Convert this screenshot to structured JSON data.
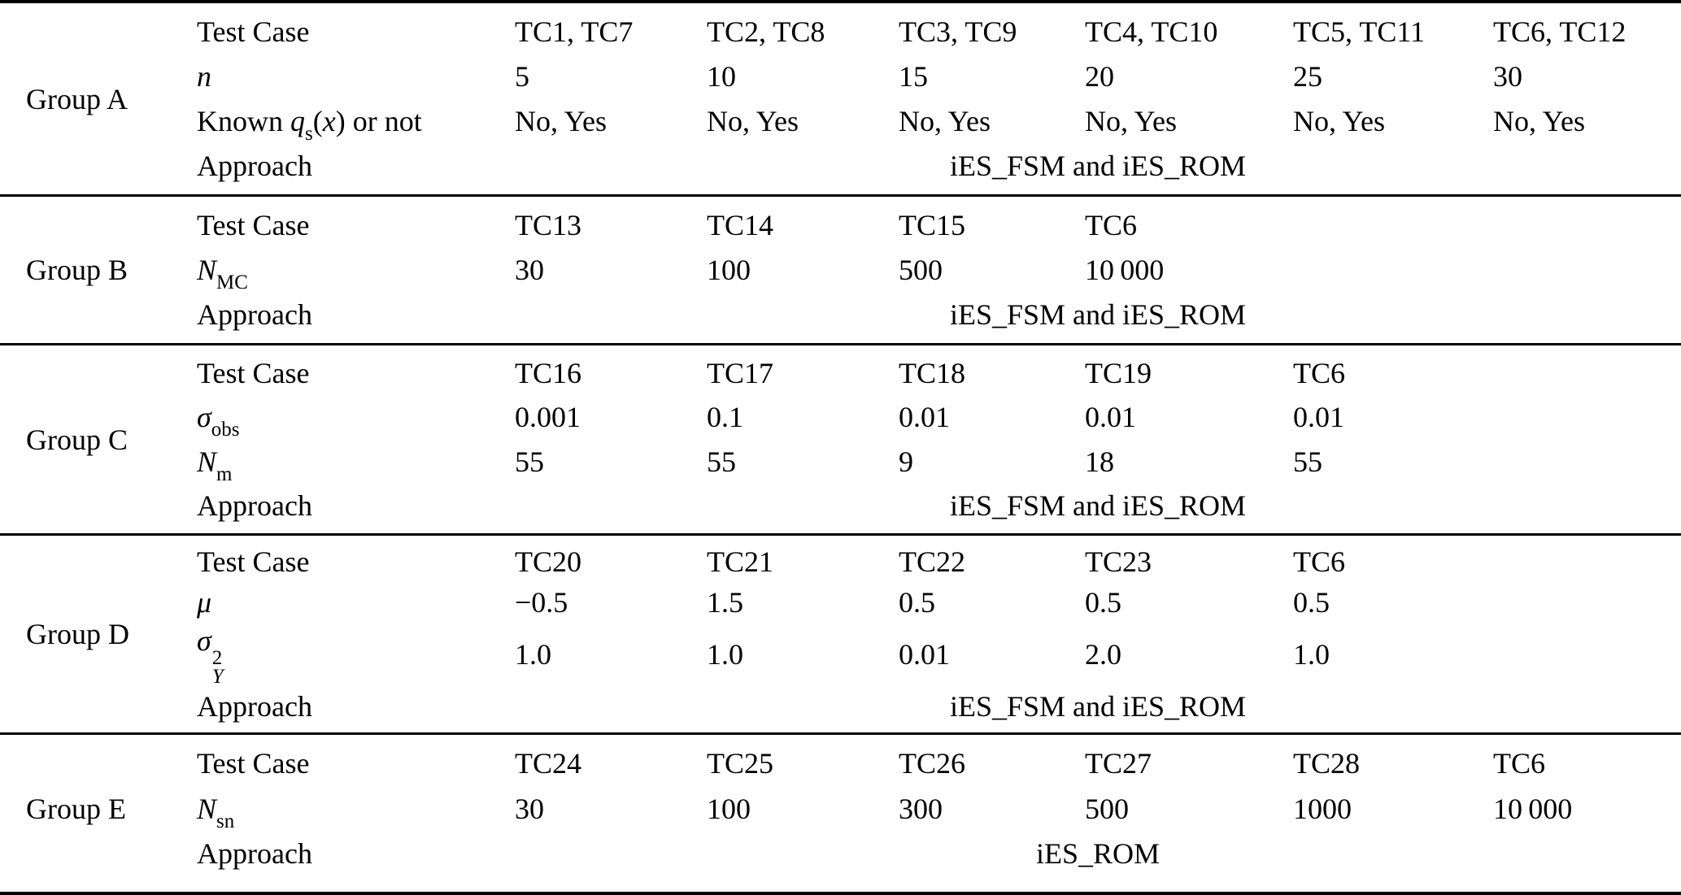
{
  "page": {
    "background": "#ffffff",
    "text_color": "#000000"
  },
  "table": {
    "groups": [
      {
        "label": "Group A",
        "rows": [
          {
            "param": [
              {
                "t": "Test Case"
              }
            ],
            "values": [
              "TC1, TC7",
              "TC2, TC8",
              "TC3, TC9",
              "TC4, TC10",
              "TC5, TC11",
              "TC6, TC12"
            ]
          },
          {
            "param": [
              {
                "t": "n"
              }
            ],
            "values": [
              "5",
              "10",
              "15",
              "20",
              "25",
              "30"
            ]
          },
          {
            "param": [
              {
                "t": "Known "
              },
              {
                "t": "q"
              },
              {
                "t": "s"
              },
              {
                "t": "("
              },
              {
                "t": "x"
              },
              {
                "t": ") or not"
              }
            ],
            "values": [
              "No, Yes",
              "No, Yes",
              "No, Yes",
              "No, Yes",
              "No, Yes",
              "No, Yes"
            ]
          },
          {
            "param": [
              {
                "t": "Approach"
              }
            ],
            "approach": "iES_FSM and iES_ROM"
          }
        ]
      },
      {
        "label": "Group B",
        "rows": [
          {
            "param": [
              {
                "t": "Test Case"
              }
            ],
            "values": [
              "TC13",
              "TC14",
              "TC15",
              "TC6"
            ]
          },
          {
            "param": [
              {
                "t": "N"
              },
              {
                "t": "MC"
              }
            ],
            "values": [
              "30",
              "100",
              "500",
              "10 000"
            ]
          },
          {
            "param": [
              {
                "t": "Approach"
              }
            ],
            "approach": "iES_FSM and iES_ROM"
          }
        ]
      },
      {
        "label": "Group C",
        "rows": [
          {
            "param": [
              {
                "t": "Test Case"
              }
            ],
            "values": [
              "TC16",
              "TC17",
              "TC18",
              "TC19",
              "TC6"
            ]
          },
          {
            "param": [
              {
                "t": "σ"
              },
              {
                "t": "obs"
              }
            ],
            "values": [
              "0.001",
              "0.1",
              "0.01",
              "0.01",
              "0.01"
            ]
          },
          {
            "param": [
              {
                "t": "N"
              },
              {
                "t": "m"
              }
            ],
            "values": [
              "55",
              "55",
              "9",
              "18",
              "55"
            ]
          },
          {
            "param": [
              {
                "t": "Approach"
              }
            ],
            "approach": "iES_FSM and iES_ROM"
          }
        ]
      },
      {
        "label": "Group D",
        "rows": [
          {
            "param": [
              {
                "t": "Test Case"
              }
            ],
            "values": [
              "TC20",
              "TC21",
              "TC22",
              "TC23",
              "TC6"
            ]
          },
          {
            "param": [
              {
                "t": "μ"
              }
            ],
            "values": [
              "−0.5",
              "1.5",
              "0.5",
              "0.5",
              "0.5"
            ]
          },
          {
            "param": [
              {
                "t": "σ"
              },
              {
                "sup": "2",
                "sub": "Y"
              }
            ],
            "values": [
              "1.0",
              "1.0",
              "0.01",
              "2.0",
              "1.0"
            ]
          },
          {
            "param": [
              {
                "t": "Approach"
              }
            ],
            "approach": "iES_FSM and iES_ROM"
          }
        ]
      },
      {
        "label": "Group E",
        "rows": [
          {
            "param": [
              {
                "t": "Test Case"
              }
            ],
            "values": [
              "TC24",
              "TC25",
              "TC26",
              "TC27",
              "TC28",
              "TC6"
            ]
          },
          {
            "param": [
              {
                "t": "N"
              },
              {
                "t": "sn"
              }
            ],
            "values": [
              "30",
              "100",
              "300",
              "500",
              "1000",
              "10 000"
            ]
          },
          {
            "param": [
              {
                "t": "Approach"
              }
            ],
            "approach": "iES_ROM"
          }
        ]
      }
    ]
  }
}
